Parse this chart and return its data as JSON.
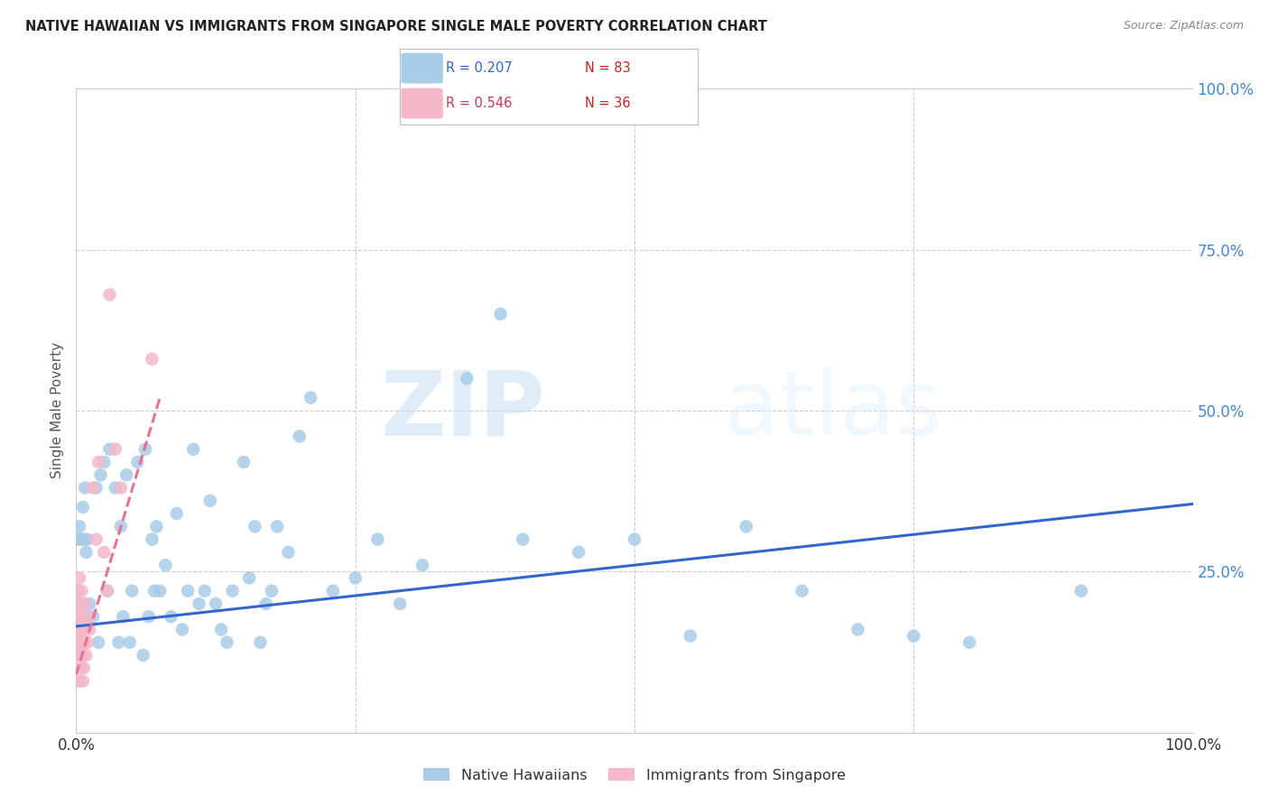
{
  "title": "NATIVE HAWAIIAN VS IMMIGRANTS FROM SINGAPORE SINGLE MALE POVERTY CORRELATION CHART",
  "source": "Source: ZipAtlas.com",
  "ylabel": "Single Male Poverty",
  "blue_color": "#a8cce8",
  "pink_color": "#f4b8c8",
  "blue_line_color": "#3366cc",
  "pink_line_color": "#e87090",
  "blue_r": 0.207,
  "blue_n": 83,
  "pink_r": 0.546,
  "pink_n": 36,
  "blue_scatter_x": [
    0.001,
    0.001,
    0.001,
    0.002,
    0.002,
    0.002,
    0.003,
    0.003,
    0.004,
    0.004,
    0.005,
    0.005,
    0.006,
    0.006,
    0.007,
    0.008,
    0.008,
    0.009,
    0.01,
    0.01,
    0.012,
    0.015,
    0.018,
    0.02,
    0.022,
    0.025,
    0.028,
    0.03,
    0.035,
    0.038,
    0.04,
    0.042,
    0.045,
    0.048,
    0.05,
    0.055,
    0.06,
    0.062,
    0.065,
    0.068,
    0.07,
    0.072,
    0.075,
    0.08,
    0.085,
    0.09,
    0.095,
    0.1,
    0.105,
    0.11,
    0.115,
    0.12,
    0.125,
    0.13,
    0.135,
    0.14,
    0.15,
    0.155,
    0.16,
    0.165,
    0.17,
    0.175,
    0.18,
    0.19,
    0.2,
    0.21,
    0.23,
    0.25,
    0.27,
    0.29,
    0.31,
    0.35,
    0.38,
    0.4,
    0.45,
    0.5,
    0.55,
    0.6,
    0.65,
    0.7,
    0.75,
    0.8,
    0.9
  ],
  "blue_scatter_y": [
    0.3,
    0.17,
    0.16,
    0.3,
    0.18,
    0.15,
    0.32,
    0.14,
    0.3,
    0.12,
    0.2,
    0.14,
    0.35,
    0.16,
    0.3,
    0.38,
    0.18,
    0.28,
    0.18,
    0.3,
    0.2,
    0.18,
    0.38,
    0.14,
    0.4,
    0.42,
    0.22,
    0.44,
    0.38,
    0.14,
    0.32,
    0.18,
    0.4,
    0.14,
    0.22,
    0.42,
    0.12,
    0.44,
    0.18,
    0.3,
    0.22,
    0.32,
    0.22,
    0.26,
    0.18,
    0.34,
    0.16,
    0.22,
    0.44,
    0.2,
    0.22,
    0.36,
    0.2,
    0.16,
    0.14,
    0.22,
    0.42,
    0.24,
    0.32,
    0.14,
    0.2,
    0.22,
    0.32,
    0.28,
    0.46,
    0.52,
    0.22,
    0.24,
    0.3,
    0.2,
    0.26,
    0.55,
    0.65,
    0.3,
    0.28,
    0.3,
    0.15,
    0.32,
    0.22,
    0.16,
    0.15,
    0.14,
    0.22
  ],
  "pink_scatter_x": [
    0.001,
    0.001,
    0.001,
    0.002,
    0.002,
    0.002,
    0.002,
    0.003,
    0.003,
    0.003,
    0.004,
    0.004,
    0.004,
    0.005,
    0.005,
    0.005,
    0.006,
    0.006,
    0.006,
    0.007,
    0.007,
    0.008,
    0.008,
    0.009,
    0.01,
    0.01,
    0.012,
    0.015,
    0.018,
    0.02,
    0.025,
    0.028,
    0.03,
    0.035,
    0.04,
    0.068
  ],
  "pink_scatter_y": [
    0.2,
    0.16,
    0.12,
    0.22,
    0.18,
    0.14,
    0.08,
    0.24,
    0.2,
    0.16,
    0.18,
    0.14,
    0.1,
    0.22,
    0.18,
    0.14,
    0.16,
    0.12,
    0.08,
    0.14,
    0.1,
    0.2,
    0.16,
    0.12,
    0.18,
    0.14,
    0.16,
    0.38,
    0.3,
    0.42,
    0.28,
    0.22,
    0.68,
    0.44,
    0.38,
    0.58
  ],
  "blue_line_x": [
    0.0,
    1.0
  ],
  "blue_line_y": [
    0.165,
    0.355
  ],
  "pink_line_x": [
    0.0,
    0.075
  ],
  "pink_line_y": [
    0.09,
    0.52
  ],
  "xgrid_values": [
    0.25,
    0.5,
    0.75
  ],
  "ygrid_values": [
    0.25,
    0.5,
    0.75
  ],
  "xlim": [
    0,
    1.0
  ],
  "ylim": [
    0,
    1.0
  ]
}
